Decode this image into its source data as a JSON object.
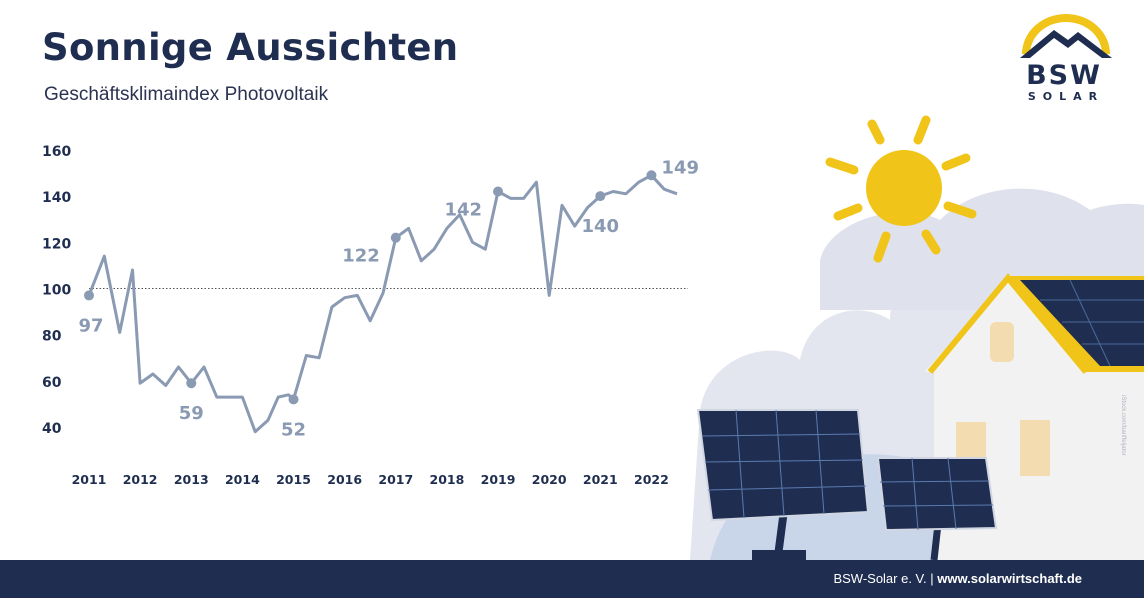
{
  "header": {
    "title": "Sonnige Aussichten",
    "subtitle": "Geschäftsklimaindex Photovoltaik"
  },
  "logo": {
    "line1": "BSW",
    "line2": "SOLAR"
  },
  "footer": {
    "org": "BSW-Solar e. V.",
    "separator": " | ",
    "url": "www.solarwirtschaft.de"
  },
  "image_credit": "iStock.com/bariffeljator",
  "colors": {
    "navy": "#1f2e50",
    "line": "#8a9ab3",
    "sun": "#f0c419",
    "panel": "#1f2e50"
  },
  "chart_data": {
    "type": "line",
    "title": "Sonnige Aussichten",
    "subtitle": "Geschäftsklimaindex Photovoltaik",
    "xlabel": "",
    "ylabel": "",
    "x_ticks": [
      "2011",
      "2012",
      "2013",
      "2014",
      "2015",
      "2016",
      "2017",
      "2018",
      "2019",
      "2020",
      "2021",
      "2022"
    ],
    "y_ticks": [
      40,
      60,
      80,
      100,
      120,
      140,
      160
    ],
    "ylim": [
      30,
      160
    ],
    "xlim": [
      2011,
      2022.5
    ],
    "reference_line": 100,
    "grid": false,
    "series": [
      {
        "x": [
          2011.0,
          2011.3,
          2011.6,
          2011.85,
          2012.0,
          2012.25,
          2012.5,
          2012.75,
          2013.0,
          2013.25,
          2013.5,
          2014.0,
          2014.25,
          2014.5,
          2014.7,
          2014.9,
          2015.0,
          2015.25,
          2015.5,
          2015.75,
          2016.0,
          2016.25,
          2016.5,
          2016.75,
          2017.0,
          2017.25,
          2017.5,
          2017.75,
          2018.0,
          2018.25,
          2018.5,
          2018.75,
          2019.0,
          2019.25,
          2019.5,
          2019.75,
          2020.0,
          2020.25,
          2020.5,
          2020.75,
          2021.0,
          2021.25,
          2021.5,
          2021.75,
          2022.0,
          2022.25,
          2022.5
        ],
        "values": [
          97,
          114,
          81,
          108,
          59,
          63,
          58,
          66,
          59,
          66,
          53,
          53,
          38,
          43,
          53,
          54,
          52,
          71,
          70,
          92,
          96,
          97,
          86,
          98,
          122,
          126,
          112,
          117,
          126,
          132,
          120,
          117,
          142,
          139,
          139,
          146,
          97,
          136,
          127,
          135,
          140,
          142,
          141,
          146,
          149,
          143,
          141
        ]
      }
    ],
    "annotations": [
      {
        "x": 2011.0,
        "value": 97,
        "label": "97",
        "pos": "below"
      },
      {
        "x": 2013.0,
        "value": 59,
        "label": "59",
        "pos": "below"
      },
      {
        "x": 2015.0,
        "value": 52,
        "label": "52",
        "pos": "below"
      },
      {
        "x": 2017.0,
        "value": 122,
        "label": "122",
        "pos": "left"
      },
      {
        "x": 2019.0,
        "value": 142,
        "label": "142",
        "pos": "left"
      },
      {
        "x": 2021.0,
        "value": 140,
        "label": "140",
        "pos": "below"
      },
      {
        "x": 2022.0,
        "value": 149,
        "label": "149",
        "pos": "right"
      }
    ]
  }
}
